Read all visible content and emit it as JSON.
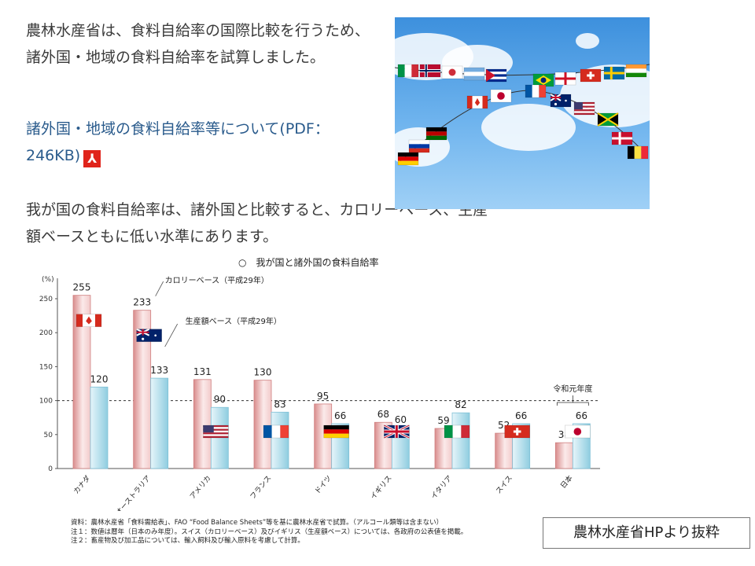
{
  "intro_text": "農林水産省は、食料自給率の国際比較を行うため、諸外国・地域の食料自給率を試算しました。",
  "link_text": "諸外国・地域の食料自給率等について(PDF：246KB)",
  "summary_text": "我が国の食料自給率は、諸外国と比較すると、カロリーベース、生産額ベースともに低い水準にあります。",
  "photo": {
    "flags": [
      "italy",
      "norway",
      "korea",
      "argentina",
      "cuba",
      "brazil",
      "england",
      "switzerland",
      "sweden",
      "india",
      "canada",
      "japan",
      "france",
      "australia",
      "usa",
      "jamaica",
      "denmark",
      "belgium",
      "kenya",
      "russia",
      "germany"
    ]
  },
  "chart_data": {
    "type": "bar",
    "title": "○　我が国と諸外国の食料自給率",
    "ylabel": "(%)",
    "ylim": [
      0,
      270
    ],
    "yticks": [
      0,
      50,
      100,
      150,
      200,
      250
    ],
    "reference_line": 100,
    "categories": [
      "カナダ",
      "オーストラリア",
      "アメリカ",
      "フランス",
      "ドイツ",
      "イギリス",
      "イタリア",
      "スイス",
      "日本"
    ],
    "series": [
      {
        "name": "カロリーベース（平成29年）",
        "values": [
          255,
          233,
          131,
          130,
          95,
          68,
          59,
          52,
          38
        ],
        "color": "#d98c8c"
      },
      {
        "name": "生産額ベース（平成29年）",
        "values": [
          120,
          133,
          90,
          83,
          66,
          60,
          82,
          66,
          66
        ],
        "color": "#8fcde0"
      }
    ],
    "flags": [
      "canada",
      "australia",
      "usa",
      "france",
      "germany",
      "uk",
      "italy",
      "switzerland",
      "japan"
    ],
    "annotation": "令和元年度",
    "notes": [
      "資料：農林水産省「食料需給表」、FAO “Food Balance Sheets”等を基に農林水産省で試算。（アルコール類等は含まない）",
      "注１：数値は暦年（日本のみ年度）。スイス（カロリーベース）及びイギリス（生産額ベース）については、各政府の公表値を掲載。",
      "注２：畜産物及び加工品については、輸入飼料及び輸入原料を考慮して計算。"
    ]
  },
  "source_label": "農林水産省HPより抜粋"
}
